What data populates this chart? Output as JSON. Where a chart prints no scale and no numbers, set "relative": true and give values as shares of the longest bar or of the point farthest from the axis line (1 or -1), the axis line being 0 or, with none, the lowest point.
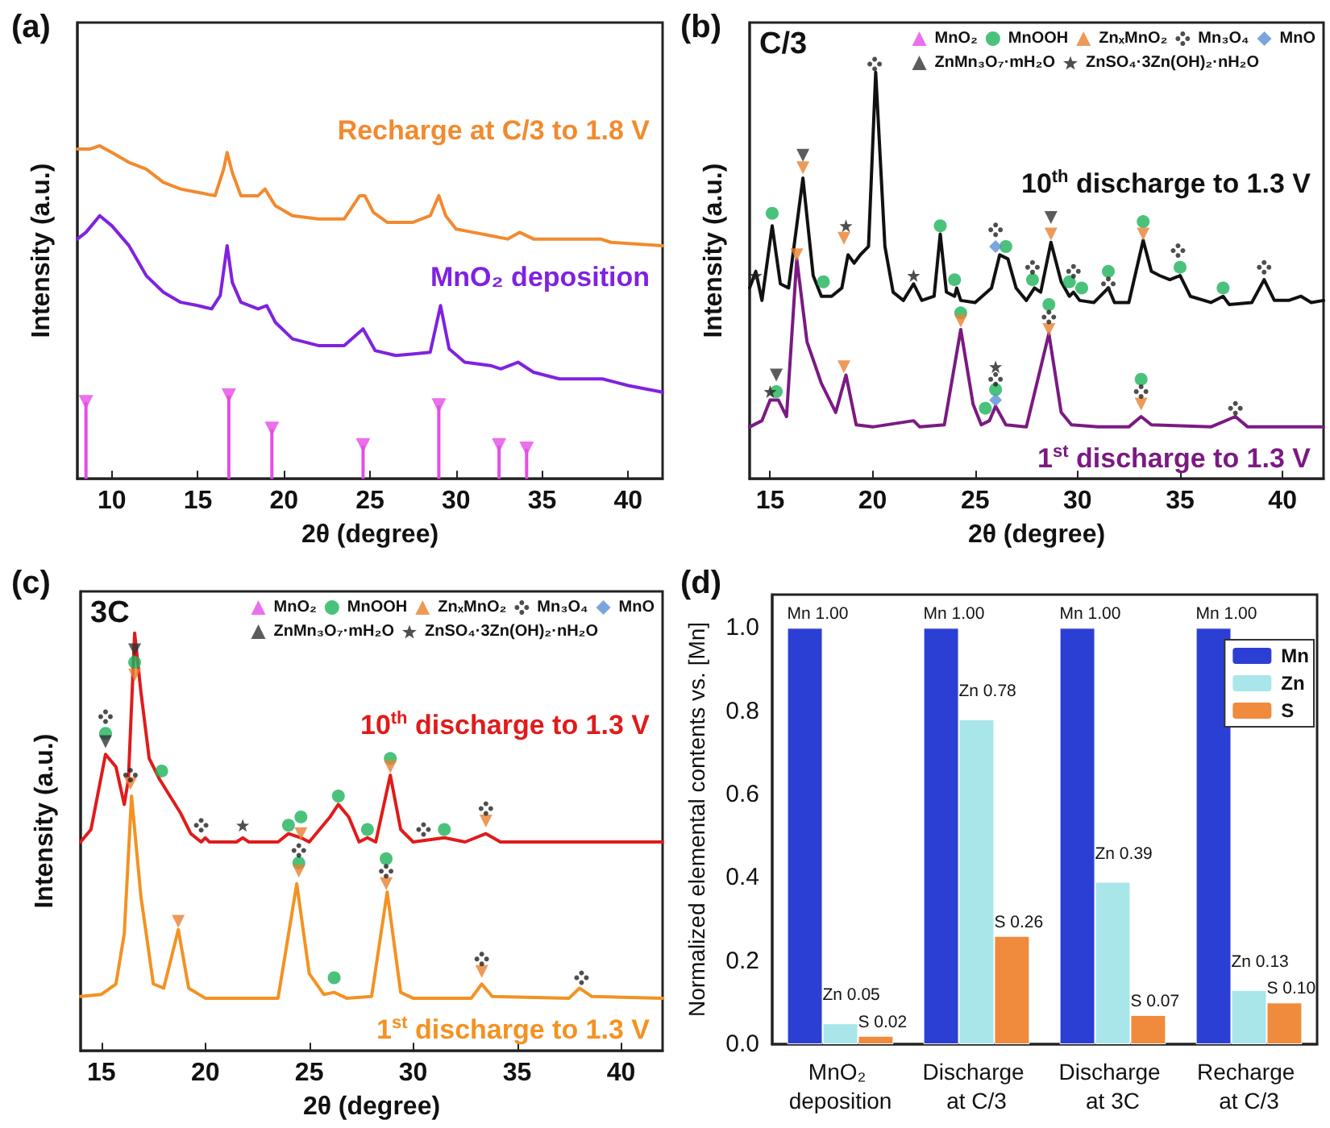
{
  "chart_data": [
    {
      "type": "line",
      "title": "(a)",
      "xlabel": "2θ (degree)",
      "ylabel": "Intensity (a.u.)",
      "relative": true,
      "xlim": [
        8,
        42
      ],
      "xticks": [
        10,
        15,
        20,
        25,
        30,
        35,
        40
      ],
      "marker": "none",
      "legend": false,
      "series": [
        {
          "name": "Recharge at C/3 to 1.8 V",
          "color": "#f28a2e",
          "x": [
            8.0,
            8.7,
            9.3,
            10.0,
            11.0,
            12.0,
            13.0,
            14.0,
            15.0,
            16.0,
            16.5,
            16.7,
            17.0,
            17.5,
            18.5,
            18.9,
            19.5,
            20.5,
            22,
            23.5,
            24.4,
            24.7,
            25.2,
            26,
            27.5,
            28.5,
            29.0,
            29.4,
            30.0,
            31,
            32,
            33.0,
            33.7,
            34.5,
            36,
            38.0,
            38.4,
            39.0,
            42.0
          ],
          "values": [
            0.99,
            0.99,
            1.0,
            0.98,
            0.95,
            0.93,
            0.89,
            0.87,
            0.86,
            0.85,
            0.93,
            0.98,
            0.92,
            0.85,
            0.85,
            0.87,
            0.82,
            0.79,
            0.78,
            0.78,
            0.85,
            0.85,
            0.8,
            0.77,
            0.77,
            0.79,
            0.85,
            0.79,
            0.75,
            0.74,
            0.73,
            0.72,
            0.74,
            0.72,
            0.72,
            0.72,
            0.72,
            0.71,
            0.7
          ]
        },
        {
          "name": "MnO₂ deposition",
          "color": "#7f22e0",
          "x": [
            8.0,
            8.5,
            9.3,
            10.0,
            11.0,
            12.0,
            13.0,
            14.0,
            15.0,
            15.8,
            16.3,
            16.7,
            17.0,
            17.5,
            18.5,
            19.0,
            19.5,
            20.5,
            22.0,
            23.5,
            24.6,
            25.3,
            26.5,
            28.5,
            29.1,
            29.6,
            30.5,
            32,
            32.6,
            33.6,
            34.5,
            36,
            38.5,
            40,
            42
          ],
          "values": [
            0.72,
            0.74,
            0.79,
            0.76,
            0.7,
            0.61,
            0.56,
            0.53,
            0.52,
            0.51,
            0.55,
            0.7,
            0.59,
            0.53,
            0.51,
            0.52,
            0.47,
            0.42,
            0.4,
            0.4,
            0.45,
            0.385,
            0.37,
            0.38,
            0.52,
            0.39,
            0.35,
            0.34,
            0.33,
            0.35,
            0.32,
            0.3,
            0.3,
            0.28,
            0.26
          ]
        },
        {
          "type": "lollipop",
          "color": "#e64ce6",
          "marker": "triangle",
          "x": [
            8.5,
            16.8,
            19.3,
            24.6,
            29.0,
            32.5,
            34.1
          ],
          "values": [
            0.23,
            0.25,
            0.15,
            0.1,
            0.22,
            0.1,
            0.09
          ]
        }
      ]
    },
    {
      "type": "line",
      "title": "(b)",
      "xlabel": "2θ (degree)",
      "ylabel": "Intensity (a.u.)",
      "relative": true,
      "xlim": [
        14,
        42
      ],
      "xticks": [
        15,
        20,
        25,
        30,
        35,
        40
      ],
      "marker": "none",
      "legend": "top right",
      "annotations": [
        "C/3"
      ],
      "series": [
        {
          "name": "10$^{th}$ discharge to 1.3 V",
          "color": "#111111",
          "x": [
            14.0,
            14.3,
            14.6,
            15.1,
            15.5,
            15.9,
            16.6,
            17.1,
            17.5,
            18.0,
            18.5,
            18.8,
            19.1,
            19.4,
            19.8,
            20.15,
            20.6,
            21.0,
            21.5,
            22.0,
            22.4,
            23.0,
            23.3,
            23.6,
            24.0,
            24.1,
            24.3,
            25.0,
            25.8,
            26.2,
            26.6,
            27.0,
            27.5,
            27.9,
            28.2,
            28.7,
            29.2,
            29.6,
            29.8,
            30.1,
            30.8,
            31.5,
            31.8,
            32.5,
            33.2,
            33.6,
            34.0,
            34.5,
            35.0,
            35.5,
            36.5,
            37.1,
            37.4,
            38.5,
            39.1,
            39.6,
            40.3,
            40.9,
            41.4,
            42
          ],
          "values": [
            0.46,
            0.5,
            0.43,
            0.61,
            0.47,
            0.46,
            0.725,
            0.49,
            0.44,
            0.44,
            0.46,
            0.54,
            0.52,
            0.54,
            0.56,
            0.98,
            0.56,
            0.45,
            0.43,
            0.47,
            0.43,
            0.44,
            0.59,
            0.45,
            0.44,
            0.46,
            0.43,
            0.425,
            0.46,
            0.54,
            0.53,
            0.46,
            0.43,
            0.46,
            0.45,
            0.57,
            0.475,
            0.44,
            0.45,
            0.43,
            0.425,
            0.46,
            0.425,
            0.425,
            0.575,
            0.5,
            0.49,
            0.48,
            0.49,
            0.44,
            0.425,
            0.44,
            0.42,
            0.425,
            0.48,
            0.43,
            0.43,
            0.44,
            0.425,
            0.43
          ]
        },
        {
          "name": "1$^{st}$ discharge to 1.3 V",
          "color": "#7b1a82",
          "x": [
            14.0,
            14.6,
            15.0,
            15.4,
            15.8,
            16.3,
            16.8,
            17.5,
            18.2,
            18.7,
            19.2,
            20,
            22.0,
            22.3,
            23.5,
            24.3,
            24.9,
            25.3,
            25.7,
            26.0,
            26.5,
            27.5,
            28.6,
            29.2,
            29.7,
            31,
            32.5,
            33.1,
            33.6,
            36.5,
            37.7,
            38.3,
            42
          ],
          "values": [
            0.125,
            0.14,
            0.19,
            0.19,
            0.15,
            0.53,
            0.33,
            0.23,
            0.16,
            0.25,
            0.13,
            0.125,
            0.14,
            0.125,
            0.13,
            0.36,
            0.18,
            0.13,
            0.14,
            0.175,
            0.13,
            0.125,
            0.35,
            0.16,
            0.13,
            0.125,
            0.125,
            0.15,
            0.13,
            0.125,
            0.15,
            0.125,
            0.125
          ]
        },
        {
          "type": "scatter",
          "name": "MnO₂",
          "color": "#e64ce6",
          "marker": "triangle"
        },
        {
          "type": "scatter",
          "name": "MnOOH",
          "color": "#1db35a",
          "marker": "circle",
          "x": [
            15.1,
            17.6,
            23.3,
            24.0,
            26.5,
            27.8,
            29.6,
            30.2,
            31.5,
            33.2,
            35.0,
            37.1,
            15.3,
            24.3,
            25.5,
            26.0,
            28.6,
            33.1
          ],
          "values": [
            0.64,
            0.475,
            0.61,
            0.48,
            0.56,
            0.48,
            0.475,
            0.46,
            0.5,
            0.62,
            0.51,
            0.46,
            0.21,
            0.4,
            0.17,
            0.215,
            0.42,
            0.24
          ]
        },
        {
          "type": "scatter",
          "name": "ZnₓMnO₂",
          "color": "#e8812f",
          "marker": "triangle",
          "x": [
            16.6,
            18.6,
            28.7,
            33.2,
            16.3,
            18.6,
            24.3,
            28.6,
            33.1
          ],
          "values": [
            0.75,
            0.58,
            0.59,
            0.59,
            0.54,
            0.27,
            0.38,
            0.36,
            0.18
          ]
        },
        {
          "type": "scatter",
          "name": "Mn₃O₄",
          "color": "#222222",
          "marker": "cross",
          "x": [
            20.1,
            26.0,
            27.8,
            29.8,
            31.5,
            34.9,
            39.1,
            26.0,
            28.6,
            33.1,
            37.7
          ],
          "values": [
            1.0,
            0.6,
            0.51,
            0.5,
            0.47,
            0.55,
            0.51,
            0.24,
            0.39,
            0.21,
            0.17
          ]
        },
        {
          "type": "scatter",
          "name": "MnO",
          "color": "#5b8fd6",
          "marker": "diamond",
          "x": [
            26.0,
            26.0
          ],
          "values": [
            0.56,
            0.19
          ]
        },
        {
          "type": "scatter",
          "name": "ZnMn₃O₇·mH₂O",
          "color": "#333333",
          "marker": "triangle",
          "x": [
            16.6,
            28.7,
            15.3
          ],
          "values": [
            0.78,
            0.63,
            0.25
          ]
        },
        {
          "type": "scatter",
          "name": "ZnSO₄·3Zn(OH)₂·nH₂O",
          "color": "#222222",
          "marker": "star",
          "x": [
            14.3,
            18.7,
            22.0,
            15.0,
            26.0
          ],
          "values": [
            0.49,
            0.61,
            0.49,
            0.21,
            0.27
          ]
        }
      ]
    },
    {
      "type": "line",
      "title": "(c)",
      "xlabel": "2θ (degree)",
      "ylabel": "Intensity (a.u.)",
      "relative": true,
      "xlim": [
        14,
        42
      ],
      "xticks": [
        15,
        20,
        25,
        30,
        35,
        40
      ],
      "marker": "none",
      "legend": "top right",
      "annotations": [
        "3C"
      ],
      "series": [
        {
          "name": "10$^{th}$ discharge to 1.3 V",
          "color": "#e01b1b",
          "x": [
            14.0,
            14.5,
            15.2,
            15.7,
            16.1,
            16.3,
            16.6,
            16.9,
            17.3,
            17.8,
            18.3,
            18.8,
            19.3,
            19.8,
            20.0,
            20.2,
            21.5,
            21.8,
            22.1,
            23.5,
            24.0,
            24.6,
            25.0,
            26.0,
            26.4,
            26.9,
            27.4,
            27.8,
            28.2,
            28.9,
            29.4,
            30.0,
            31.5,
            32.5,
            33.5,
            34.2,
            42
          ],
          "values": [
            0.5,
            0.53,
            0.71,
            0.68,
            0.59,
            0.65,
            1.0,
            0.86,
            0.7,
            0.65,
            0.61,
            0.57,
            0.52,
            0.5,
            0.51,
            0.5,
            0.5,
            0.51,
            0.5,
            0.5,
            0.52,
            0.51,
            0.5,
            0.56,
            0.59,
            0.56,
            0.5,
            0.51,
            0.5,
            0.66,
            0.53,
            0.5,
            0.51,
            0.5,
            0.52,
            0.5,
            0.5
          ]
        },
        {
          "name": "1$^{st}$ discharge to 1.3 V",
          "color": "#f39222",
          "x": [
            14.0,
            15.0,
            15.7,
            16.1,
            16.45,
            16.9,
            17.5,
            18.0,
            18.7,
            19.2,
            20,
            23.5,
            24.4,
            25.0,
            25.7,
            26.2,
            26.8,
            28.0,
            28.75,
            29.4,
            30,
            32.8,
            33.3,
            33.8,
            37.5,
            38.0,
            38.6,
            42
          ],
          "values": [
            0.13,
            0.135,
            0.16,
            0.28,
            0.61,
            0.37,
            0.16,
            0.15,
            0.29,
            0.15,
            0.126,
            0.126,
            0.4,
            0.185,
            0.135,
            0.14,
            0.126,
            0.13,
            0.38,
            0.14,
            0.126,
            0.126,
            0.16,
            0.13,
            0.126,
            0.15,
            0.13,
            0.126
          ]
        },
        {
          "type": "scatter",
          "name": "MnO₂",
          "color": "#e64ce6",
          "marker": "triangle"
        },
        {
          "type": "scatter",
          "name": "MnOOH",
          "color": "#1db35a",
          "marker": "circle",
          "x": [
            15.2,
            16.6,
            17.9,
            24.0,
            24.6,
            26.4,
            27.8,
            28.9,
            31.5,
            24.5,
            26.2,
            28.7
          ],
          "values": [
            0.76,
            0.93,
            0.67,
            0.54,
            0.56,
            0.61,
            0.53,
            0.7,
            0.53,
            0.45,
            0.175,
            0.46
          ]
        },
        {
          "type": "scatter",
          "name": "ZnₓMnO₂",
          "color": "#e8812f",
          "marker": "triangle",
          "x": [
            16.6,
            16.4,
            24.6,
            28.9,
            33.5,
            18.7,
            24.5,
            28.7,
            33.3
          ],
          "values": [
            0.9,
            0.64,
            0.52,
            0.68,
            0.55,
            0.31,
            0.43,
            0.4,
            0.19
          ]
        },
        {
          "type": "scatter",
          "name": "Mn₃O₄",
          "color": "#222222",
          "marker": "cross",
          "x": [
            15.2,
            16.4,
            19.8,
            30.5,
            33.5,
            24.5,
            28.7,
            33.3,
            38.1
          ],
          "values": [
            0.8,
            0.66,
            0.54,
            0.53,
            0.58,
            0.48,
            0.43,
            0.22,
            0.175
          ]
        },
        {
          "type": "scatter",
          "name": "MnO",
          "color": "#5b8fd6",
          "marker": "diamond"
        },
        {
          "type": "scatter",
          "name": "ZnMn₃O₇·mH₂O",
          "color": "#333333",
          "marker": "triangle",
          "x": [
            15.2,
            16.6
          ],
          "values": [
            0.74,
            0.96
          ]
        },
        {
          "type": "scatter",
          "name": "ZnSO₄·3Zn(OH)₂·nH₂O",
          "color": "#222222",
          "marker": "star",
          "x": [
            21.8
          ],
          "values": [
            0.54
          ]
        }
      ]
    },
    {
      "type": "bar",
      "title": "(d)",
      "ylabel": "Normalized elemental contents vs. [Mn]",
      "categories": [
        "MnO₂ deposition",
        "Discharge at C/3",
        "Discharge at 3C",
        "Recharge at C/3"
      ],
      "ylim": [
        0,
        1.08
      ],
      "yticks": [
        {
          "value": 0,
          "label": "0.0"
        },
        {
          "value": 0.2,
          "label": "0.2"
        },
        {
          "value": 0.4,
          "label": "0.4"
        },
        {
          "value": 0.6,
          "label": "0.6"
        },
        {
          "value": 0.8,
          "label": "0.8"
        },
        {
          "value": 1.0,
          "label": "1.0"
        }
      ],
      "legend": "top right",
      "series": [
        {
          "name": "Mn",
          "color": "#2b3fd4",
          "values": [
            1.0,
            1.0,
            1.0,
            1.0
          ],
          "value_labels": [
            "Mn 1.00",
            "Mn 1.00",
            "Mn 1.00",
            "Mn 1.00"
          ]
        },
        {
          "name": "Zn",
          "color": "#a8e6ea",
          "values": [
            0.05,
            0.78,
            0.39,
            0.13
          ],
          "value_labels": [
            "Zn 0.05",
            "Zn 0.78",
            "Zn 0.39",
            "Zn 0.13"
          ]
        },
        {
          "name": "S",
          "color": "#f08a3c",
          "values": [
            0.02,
            0.26,
            0.07,
            0.1
          ],
          "value_labels": [
            "S 0.02",
            "S 0.26",
            "S 0.07",
            "S 0.10"
          ]
        }
      ]
    }
  ]
}
